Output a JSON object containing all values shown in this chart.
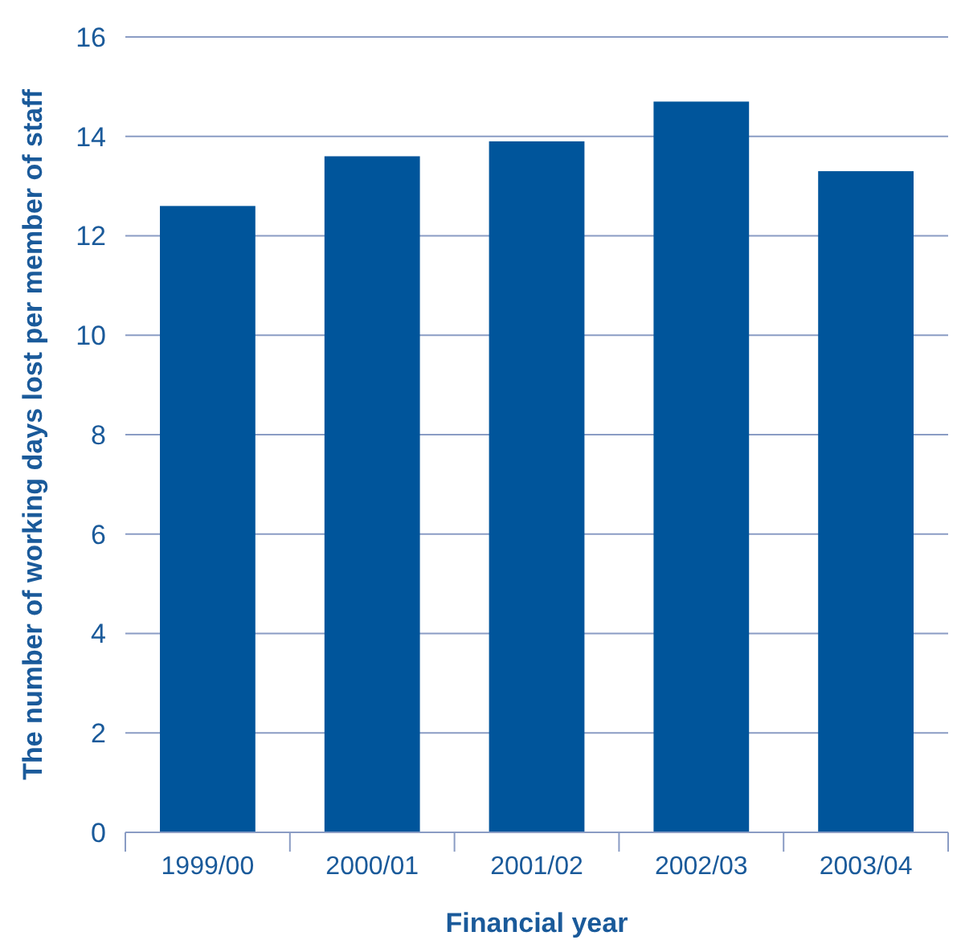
{
  "chart_data": {
    "type": "bar",
    "xlabel": "Financial year",
    "ylabel": "The number of working days lost per member of staff",
    "categories": [
      "1999/00",
      "2000/01",
      "2001/02",
      "2002/03",
      "2003/04"
    ],
    "values": [
      12.6,
      13.6,
      13.9,
      14.7,
      13.3
    ],
    "color": "#00559b",
    "ylim": [
      0,
      16
    ],
    "yticks": [
      0,
      2,
      4,
      6,
      8,
      10,
      12,
      14,
      16
    ],
    "grid": "y"
  }
}
